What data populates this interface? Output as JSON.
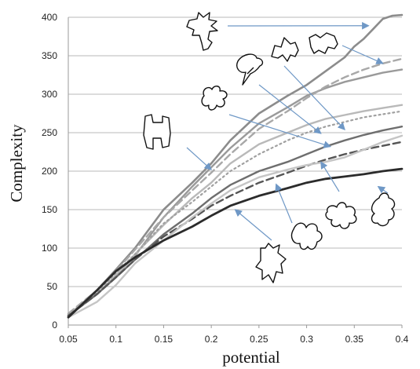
{
  "chart_data": {
    "type": "line",
    "xlabel": "potential",
    "ylabel": "Complexity",
    "xlim": [
      0.05,
      0.4
    ],
    "ylim": [
      0,
      400
    ],
    "xticks": [
      "0.05",
      "0.1",
      "0.15",
      "0.2",
      "0.25",
      "0.3",
      "0.35",
      "0.4"
    ],
    "yticks": [
      "0",
      "50",
      "100",
      "150",
      "200",
      "250",
      "300",
      "350",
      "400"
    ],
    "grid": "horizontal",
    "series": [
      {
        "color": "#8c8c8c",
        "style": "solid",
        "width": 2.6,
        "x": [
          0.05,
          0.08,
          0.1,
          0.12,
          0.15,
          0.18,
          0.2,
          0.22,
          0.25,
          0.28,
          0.3,
          0.32,
          0.34,
          0.35,
          0.36,
          0.37,
          0.38,
          0.39,
          0.4
        ],
        "y": [
          12,
          45,
          72,
          100,
          150,
          185,
          210,
          240,
          275,
          298,
          312,
          330,
          348,
          362,
          372,
          385,
          398,
          402,
          403
        ]
      },
      {
        "color": "#9a9a9a",
        "style": "solid",
        "width": 2.4,
        "x": [
          0.05,
          0.08,
          0.1,
          0.12,
          0.15,
          0.18,
          0.2,
          0.22,
          0.25,
          0.28,
          0.3,
          0.32,
          0.34,
          0.36,
          0.38,
          0.4
        ],
        "y": [
          12,
          40,
          65,
          90,
          140,
          180,
          205,
          230,
          262,
          283,
          298,
          308,
          316,
          322,
          328,
          332
        ]
      },
      {
        "color": "#a8a8a8",
        "style": "dashed",
        "width": 2.4,
        "x": [
          0.05,
          0.08,
          0.1,
          0.12,
          0.15,
          0.18,
          0.2,
          0.22,
          0.25,
          0.28,
          0.3,
          0.32,
          0.34,
          0.36,
          0.38,
          0.4
        ],
        "y": [
          15,
          45,
          70,
          98,
          140,
          175,
          198,
          222,
          255,
          278,
          295,
          310,
          322,
          332,
          340,
          346
        ]
      },
      {
        "color": "#b9b9b9",
        "style": "solid",
        "width": 2.4,
        "x": [
          0.05,
          0.08,
          0.1,
          0.12,
          0.15,
          0.18,
          0.2,
          0.22,
          0.25,
          0.28,
          0.3,
          0.32,
          0.34,
          0.36,
          0.38,
          0.4
        ],
        "y": [
          14,
          40,
          65,
          92,
          130,
          165,
          185,
          210,
          235,
          250,
          260,
          268,
          273,
          278,
          282,
          286
        ]
      },
      {
        "color": "#a0a0a0",
        "style": "dotted",
        "width": 2.2,
        "x": [
          0.05,
          0.08,
          0.1,
          0.12,
          0.15,
          0.18,
          0.2,
          0.22,
          0.25,
          0.28,
          0.3,
          0.32,
          0.34,
          0.36,
          0.38,
          0.4
        ],
        "y": [
          14,
          42,
          68,
          92,
          132,
          160,
          180,
          200,
          222,
          240,
          250,
          258,
          264,
          270,
          274,
          278
        ]
      },
      {
        "color": "#6e6e6e",
        "style": "solid",
        "width": 2.4,
        "x": [
          0.05,
          0.08,
          0.1,
          0.12,
          0.15,
          0.18,
          0.2,
          0.22,
          0.25,
          0.28,
          0.3,
          0.32,
          0.34,
          0.36,
          0.38,
          0.4
        ],
        "y": [
          12,
          40,
          62,
          85,
          118,
          145,
          165,
          182,
          200,
          212,
          222,
          232,
          240,
          247,
          253,
          258
        ]
      },
      {
        "color": "#555555",
        "style": "dashed",
        "width": 2.4,
        "x": [
          0.05,
          0.08,
          0.1,
          0.12,
          0.15,
          0.18,
          0.2,
          0.22,
          0.25,
          0.28,
          0.3,
          0.32,
          0.34,
          0.36,
          0.38,
          0.4
        ],
        "y": [
          12,
          40,
          62,
          85,
          115,
          138,
          155,
          168,
          185,
          198,
          207,
          215,
          222,
          228,
          233,
          238
        ]
      },
      {
        "color": "#c5c5c5",
        "style": "solid",
        "width": 2.4,
        "x": [
          0.05,
          0.08,
          0.1,
          0.12,
          0.15,
          0.18,
          0.2,
          0.22,
          0.25,
          0.28,
          0.3,
          0.32,
          0.34,
          0.36,
          0.38,
          0.4
        ],
        "y": [
          10,
          30,
          52,
          80,
          110,
          140,
          158,
          175,
          192,
          202,
          208,
          212,
          218,
          228,
          238,
          246
        ]
      },
      {
        "color": "#2b2b2b",
        "style": "solid",
        "width": 2.8,
        "x": [
          0.05,
          0.08,
          0.1,
          0.12,
          0.15,
          0.18,
          0.2,
          0.22,
          0.25,
          0.28,
          0.3,
          0.32,
          0.34,
          0.36,
          0.38,
          0.4
        ],
        "y": [
          10,
          45,
          70,
          88,
          110,
          128,
          142,
          155,
          168,
          178,
          185,
          190,
          193,
          196,
          200,
          203
        ]
      }
    ],
    "annotations": [
      {
        "shape": "cross-branch",
        "target": [
          0.365,
          389
        ]
      },
      {
        "shape": "crumpled",
        "target": [
          0.38,
          340
        ]
      },
      {
        "shape": "blob-spiky",
        "target": [
          0.315,
          249
        ]
      },
      {
        "shape": "leaf",
        "target": [
          0.34,
          254
        ]
      },
      {
        "shape": "lobed",
        "target": [
          0.325,
          232
        ]
      },
      {
        "shape": "h-shape",
        "target": [
          0.2,
          202
        ]
      },
      {
        "shape": "star-lobed",
        "target": [
          0.315,
          212
        ]
      },
      {
        "shape": "tall-lobed",
        "target": [
          0.375,
          180
        ]
      },
      {
        "shape": "bat-shape",
        "target": [
          0.268,
          183
        ]
      },
      {
        "shape": "person-shape",
        "target": [
          0.225,
          150
        ]
      }
    ]
  }
}
